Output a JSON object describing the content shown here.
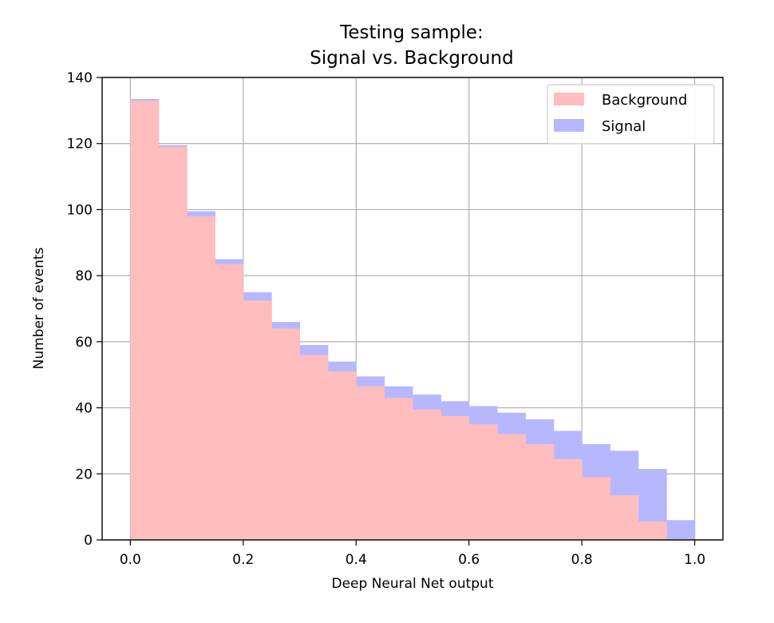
{
  "chart_data": {
    "type": "bar",
    "title": "Testing sample:",
    "subtitle": "Signal vs. Background",
    "xlabel": "Deep Neural Net output",
    "ylabel": "Number of events",
    "xlim": [
      -0.05,
      1.05
    ],
    "ylim": [
      0,
      140
    ],
    "xticks": [
      "0.0",
      "0.2",
      "0.4",
      "0.6",
      "0.8",
      "1.0"
    ],
    "yticks": [
      "0",
      "20",
      "40",
      "60",
      "80",
      "100",
      "120",
      "140"
    ],
    "grid": true,
    "legend_position": "top-right",
    "bin_edges": [
      0.0,
      0.05,
      0.1,
      0.15,
      0.2,
      0.25,
      0.3,
      0.35,
      0.4,
      0.45,
      0.5,
      0.55,
      0.6,
      0.65,
      0.7,
      0.75,
      0.8,
      0.85,
      0.9,
      0.95,
      1.0
    ],
    "series": [
      {
        "name": "Signal",
        "color": "#b7b7ff",
        "values": [
          133.5,
          119.5,
          99.5,
          85.0,
          75.0,
          66.0,
          59.0,
          54.0,
          49.5,
          46.5,
          44.0,
          42.0,
          40.5,
          38.5,
          36.5,
          33.0,
          29.0,
          27.0,
          21.5,
          6.0
        ]
      },
      {
        "name": "Background",
        "color": "#ffbdbd",
        "values": [
          133.0,
          119.0,
          98.0,
          83.5,
          72.5,
          64.0,
          56.0,
          51.0,
          46.5,
          43.0,
          39.5,
          37.5,
          35.0,
          32.0,
          29.0,
          24.5,
          19.0,
          13.5,
          5.5,
          0.0
        ]
      }
    ]
  }
}
